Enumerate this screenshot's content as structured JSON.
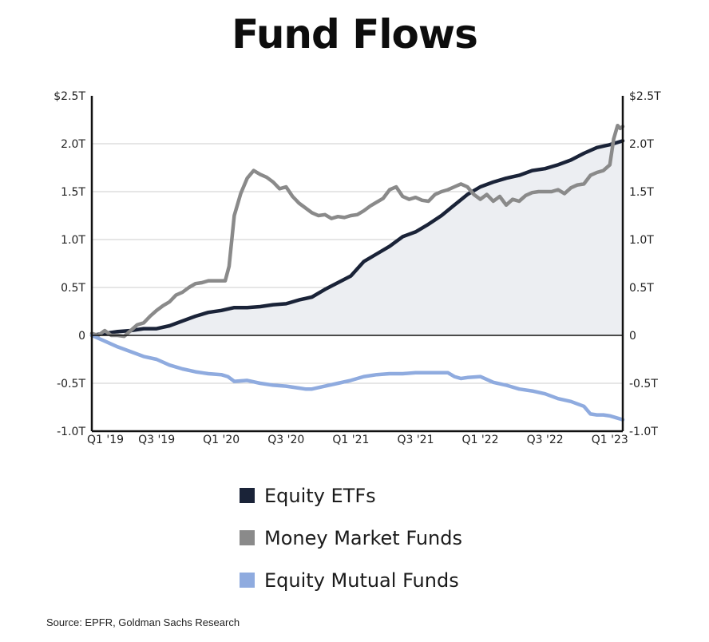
{
  "title": "Fund Flows",
  "source": "Source: EPFR, Goldman Sachs Research",
  "colors": {
    "equity_etfs": "#1a2338",
    "money_market": "#8a8a8a",
    "equity_mutual": "#8fabdf",
    "area_fill": "#eceef2",
    "grid": "#cccccc",
    "axis": "#111111"
  },
  "chart_data": {
    "type": "line",
    "title": "Fund Flows",
    "ylim": [
      -1.0,
      2.5
    ],
    "y_ticks": [
      {
        "value": 2.5,
        "left": "$2.5T",
        "right": "$2.5T"
      },
      {
        "value": 2.0,
        "left": "2.0T",
        "right": "2.0T"
      },
      {
        "value": 1.5,
        "left": "1.5T",
        "right": "1.5T"
      },
      {
        "value": 1.0,
        "left": "1.0T",
        "right": "1.0T"
      },
      {
        "value": 0.5,
        "left": "0.5T",
        "right": "0.5T"
      },
      {
        "value": 0,
        "left": "0",
        "right": "0"
      },
      {
        "value": -0.5,
        "left": "-0.5T",
        "right": "-0.5T"
      },
      {
        "value": -1.0,
        "left": "-1.0T",
        "right": "-1.0T"
      }
    ],
    "x_ticks": [
      {
        "value": 2019.0,
        "label": "Q1 '19"
      },
      {
        "value": 2019.5,
        "label": "Q3 '19"
      },
      {
        "value": 2020.0,
        "label": "Q1 '20"
      },
      {
        "value": 2020.5,
        "label": "Q3 '20"
      },
      {
        "value": 2021.0,
        "label": "Q1 '21"
      },
      {
        "value": 2021.5,
        "label": "Q3 '21"
      },
      {
        "value": 2022.0,
        "label": "Q1 '22"
      },
      {
        "value": 2022.5,
        "label": "Q3 '22"
      },
      {
        "value": 2023.0,
        "label": "Q1 '23"
      }
    ],
    "xlim": [
      2019.0,
      2023.1
    ],
    "grid": true,
    "series": [
      {
        "name": "Equity ETFs",
        "color": "#1a2338",
        "fill_to_zero": true,
        "points": [
          [
            2019.0,
            0.0
          ],
          [
            2019.1,
            0.02
          ],
          [
            2019.2,
            0.04
          ],
          [
            2019.3,
            0.05
          ],
          [
            2019.4,
            0.07
          ],
          [
            2019.5,
            0.07
          ],
          [
            2019.6,
            0.1
          ],
          [
            2019.7,
            0.15
          ],
          [
            2019.8,
            0.2
          ],
          [
            2019.9,
            0.24
          ],
          [
            2020.0,
            0.26
          ],
          [
            2020.1,
            0.29
          ],
          [
            2020.2,
            0.29
          ],
          [
            2020.3,
            0.3
          ],
          [
            2020.4,
            0.32
          ],
          [
            2020.5,
            0.33
          ],
          [
            2020.6,
            0.37
          ],
          [
            2020.7,
            0.4
          ],
          [
            2020.8,
            0.48
          ],
          [
            2020.9,
            0.55
          ],
          [
            2021.0,
            0.62
          ],
          [
            2021.1,
            0.77
          ],
          [
            2021.2,
            0.85
          ],
          [
            2021.3,
            0.93
          ],
          [
            2021.4,
            1.03
          ],
          [
            2021.5,
            1.08
          ],
          [
            2021.6,
            1.16
          ],
          [
            2021.7,
            1.25
          ],
          [
            2021.8,
            1.36
          ],
          [
            2021.9,
            1.47
          ],
          [
            2022.0,
            1.55
          ],
          [
            2022.1,
            1.6
          ],
          [
            2022.2,
            1.64
          ],
          [
            2022.3,
            1.67
          ],
          [
            2022.4,
            1.72
          ],
          [
            2022.5,
            1.74
          ],
          [
            2022.6,
            1.78
          ],
          [
            2022.7,
            1.83
          ],
          [
            2022.8,
            1.9
          ],
          [
            2022.9,
            1.96
          ],
          [
            2023.0,
            1.99
          ],
          [
            2023.1,
            2.03
          ]
        ]
      },
      {
        "name": "Money Market Funds",
        "color": "#8a8a8a",
        "fill_to_zero": false,
        "points": [
          [
            2019.0,
            0.02
          ],
          [
            2019.05,
            0.0
          ],
          [
            2019.1,
            0.05
          ],
          [
            2019.15,
            0.0
          ],
          [
            2019.2,
            0.0
          ],
          [
            2019.25,
            -0.01
          ],
          [
            2019.3,
            0.05
          ],
          [
            2019.35,
            0.11
          ],
          [
            2019.4,
            0.13
          ],
          [
            2019.45,
            0.2
          ],
          [
            2019.5,
            0.26
          ],
          [
            2019.55,
            0.31
          ],
          [
            2019.6,
            0.35
          ],
          [
            2019.65,
            0.42
          ],
          [
            2019.7,
            0.45
          ],
          [
            2019.75,
            0.5
          ],
          [
            2019.8,
            0.54
          ],
          [
            2019.85,
            0.55
          ],
          [
            2019.9,
            0.57
          ],
          [
            2019.95,
            0.57
          ],
          [
            2020.0,
            0.57
          ],
          [
            2020.03,
            0.57
          ],
          [
            2020.06,
            0.72
          ],
          [
            2020.1,
            1.25
          ],
          [
            2020.15,
            1.48
          ],
          [
            2020.2,
            1.64
          ],
          [
            2020.25,
            1.72
          ],
          [
            2020.3,
            1.68
          ],
          [
            2020.35,
            1.65
          ],
          [
            2020.4,
            1.6
          ],
          [
            2020.45,
            1.53
          ],
          [
            2020.5,
            1.55
          ],
          [
            2020.55,
            1.45
          ],
          [
            2020.6,
            1.38
          ],
          [
            2020.65,
            1.33
          ],
          [
            2020.7,
            1.28
          ],
          [
            2020.75,
            1.25
          ],
          [
            2020.8,
            1.26
          ],
          [
            2020.85,
            1.22
          ],
          [
            2020.9,
            1.24
          ],
          [
            2020.95,
            1.23
          ],
          [
            2021.0,
            1.25
          ],
          [
            2021.05,
            1.26
          ],
          [
            2021.1,
            1.3
          ],
          [
            2021.15,
            1.35
          ],
          [
            2021.2,
            1.39
          ],
          [
            2021.25,
            1.43
          ],
          [
            2021.3,
            1.52
          ],
          [
            2021.35,
            1.55
          ],
          [
            2021.4,
            1.45
          ],
          [
            2021.45,
            1.42
          ],
          [
            2021.5,
            1.44
          ],
          [
            2021.55,
            1.41
          ],
          [
            2021.6,
            1.4
          ],
          [
            2021.65,
            1.47
          ],
          [
            2021.7,
            1.5
          ],
          [
            2021.75,
            1.52
          ],
          [
            2021.8,
            1.55
          ],
          [
            2021.85,
            1.58
          ],
          [
            2021.9,
            1.55
          ],
          [
            2021.95,
            1.47
          ],
          [
            2022.0,
            1.42
          ],
          [
            2022.05,
            1.47
          ],
          [
            2022.1,
            1.4
          ],
          [
            2022.15,
            1.45
          ],
          [
            2022.2,
            1.36
          ],
          [
            2022.25,
            1.42
          ],
          [
            2022.3,
            1.4
          ],
          [
            2022.35,
            1.46
          ],
          [
            2022.4,
            1.49
          ],
          [
            2022.45,
            1.5
          ],
          [
            2022.5,
            1.5
          ],
          [
            2022.55,
            1.5
          ],
          [
            2022.6,
            1.52
          ],
          [
            2022.65,
            1.48
          ],
          [
            2022.7,
            1.54
          ],
          [
            2022.75,
            1.57
          ],
          [
            2022.8,
            1.58
          ],
          [
            2022.85,
            1.67
          ],
          [
            2022.9,
            1.7
          ],
          [
            2022.95,
            1.72
          ],
          [
            2023.0,
            1.78
          ],
          [
            2023.03,
            2.05
          ],
          [
            2023.06,
            2.19
          ],
          [
            2023.08,
            2.16
          ],
          [
            2023.1,
            2.18
          ]
        ]
      },
      {
        "name": "Equity Mutual Funds",
        "color": "#8fabdf",
        "fill_to_zero": false,
        "points": [
          [
            2019.0,
            0.0
          ],
          [
            2019.1,
            -0.06
          ],
          [
            2019.2,
            -0.12
          ],
          [
            2019.3,
            -0.17
          ],
          [
            2019.4,
            -0.22
          ],
          [
            2019.5,
            -0.25
          ],
          [
            2019.6,
            -0.31
          ],
          [
            2019.7,
            -0.35
          ],
          [
            2019.8,
            -0.38
          ],
          [
            2019.9,
            -0.4
          ],
          [
            2020.0,
            -0.41
          ],
          [
            2020.05,
            -0.43
          ],
          [
            2020.1,
            -0.48
          ],
          [
            2020.2,
            -0.47
          ],
          [
            2020.3,
            -0.5
          ],
          [
            2020.4,
            -0.52
          ],
          [
            2020.5,
            -0.53
          ],
          [
            2020.6,
            -0.55
          ],
          [
            2020.65,
            -0.56
          ],
          [
            2020.7,
            -0.56
          ],
          [
            2020.8,
            -0.53
          ],
          [
            2020.9,
            -0.5
          ],
          [
            2021.0,
            -0.47
          ],
          [
            2021.1,
            -0.43
          ],
          [
            2021.2,
            -0.41
          ],
          [
            2021.3,
            -0.4
          ],
          [
            2021.4,
            -0.4
          ],
          [
            2021.5,
            -0.39
          ],
          [
            2021.6,
            -0.39
          ],
          [
            2021.7,
            -0.39
          ],
          [
            2021.75,
            -0.39
          ],
          [
            2021.8,
            -0.43
          ],
          [
            2021.85,
            -0.45
          ],
          [
            2021.9,
            -0.44
          ],
          [
            2022.0,
            -0.43
          ],
          [
            2022.05,
            -0.46
          ],
          [
            2022.1,
            -0.49
          ],
          [
            2022.2,
            -0.52
          ],
          [
            2022.3,
            -0.56
          ],
          [
            2022.4,
            -0.58
          ],
          [
            2022.5,
            -0.61
          ],
          [
            2022.6,
            -0.66
          ],
          [
            2022.7,
            -0.69
          ],
          [
            2022.8,
            -0.74
          ],
          [
            2022.85,
            -0.82
          ],
          [
            2022.9,
            -0.83
          ],
          [
            2022.95,
            -0.83
          ],
          [
            2023.0,
            -0.84
          ],
          [
            2023.05,
            -0.86
          ],
          [
            2023.1,
            -0.88
          ]
        ]
      }
    ]
  }
}
